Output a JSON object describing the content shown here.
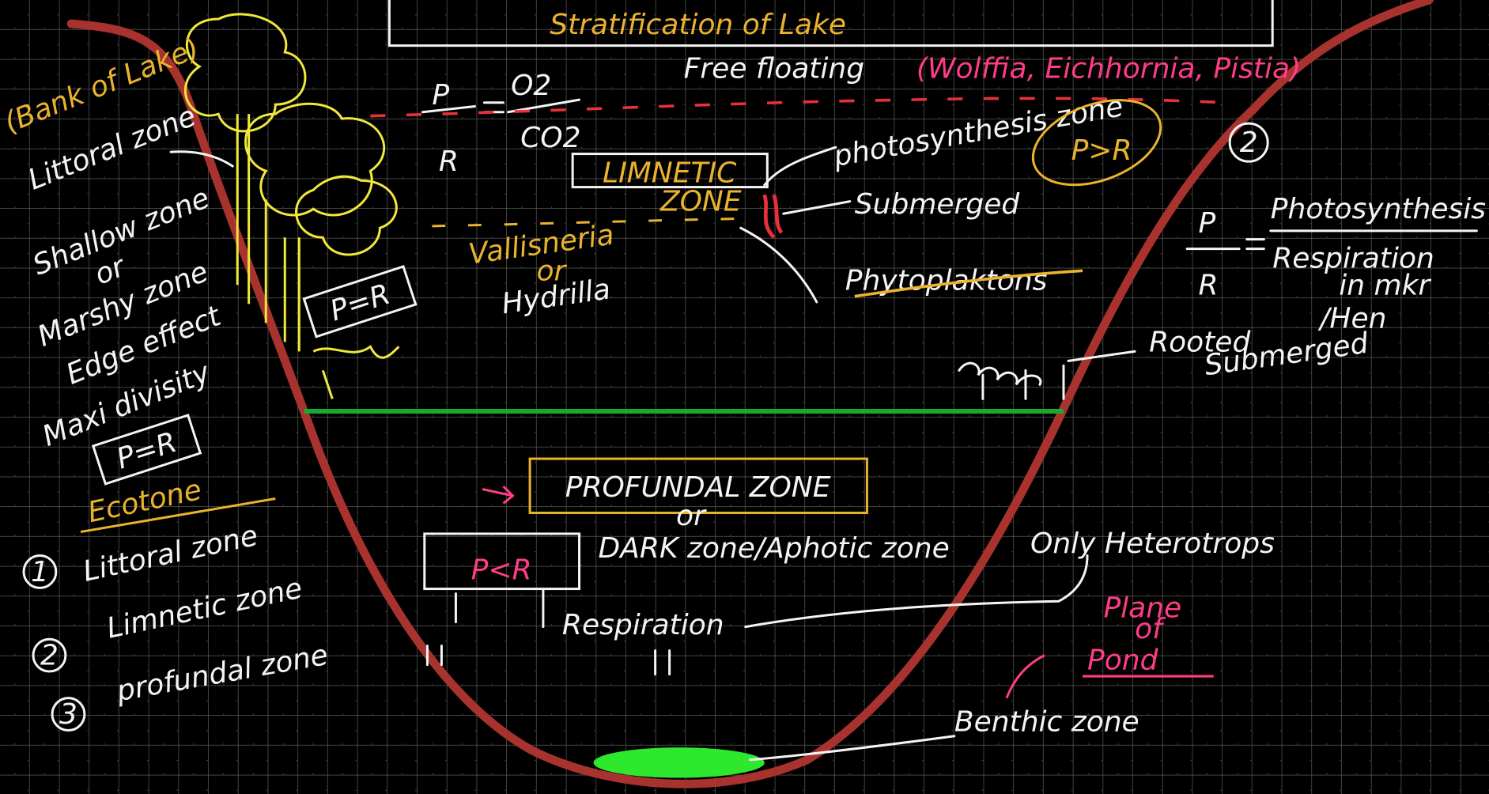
{
  "title": "Stratification of Lake",
  "left_bank": {
    "bank": "(Bank of Lake)",
    "littoral": "Littoral zone",
    "shallow": "Shallow zone",
    "or": "or",
    "marshy": "Marshy zone",
    "edge": "Edge effect",
    "maxi": "Maxi divisity",
    "balance": "P=R",
    "ecotone": "Ecotone"
  },
  "zones_list": [
    {
      "number": "1",
      "label": "Littoral zone"
    },
    {
      "number": "2",
      "label": "Limnetic zone"
    },
    {
      "number": "3",
      "label": "profundal zone"
    }
  ],
  "ratio_left": {
    "p": "P",
    "r": "R",
    "o2": "O2",
    "co2": "CO2"
  },
  "free_floating": {
    "label": "Free floating",
    "examples": "(Wolffia, Eichhornia, Pistia)"
  },
  "photosynthesis_zone": "photosynthesis zone",
  "p_greater_r": "P>R",
  "circle_number": "2",
  "limnetic": {
    "line1": "LIMNETIC",
    "line2": "ZONE"
  },
  "submerged": "Submerged",
  "vallisneria": {
    "name": "Vallisneria",
    "or": "or",
    "alt": "Hydrilla"
  },
  "phytoplankton": "Phytoplaktons",
  "littoral_plants_balance": "P=R",
  "ratio_right": {
    "p": "P",
    "r": "R",
    "numerator": "Photosynthesis",
    "denominator": "Respiration",
    "note1": "in mkr",
    "note2": "/Hen"
  },
  "rooted": {
    "line1": "Rooted",
    "line2": "Submerged"
  },
  "profundal": {
    "title": "PROFUNDAL ZONE",
    "or": "or",
    "alt": "DARK zone/Aphotic zone",
    "balance": "P<R",
    "respiration": "Respiration"
  },
  "heterotrophs": "Only Heterotrops",
  "plane": {
    "line1": "Plane",
    "line2": "of",
    "line3": "Pond"
  },
  "benthic": "Benthic zone"
}
